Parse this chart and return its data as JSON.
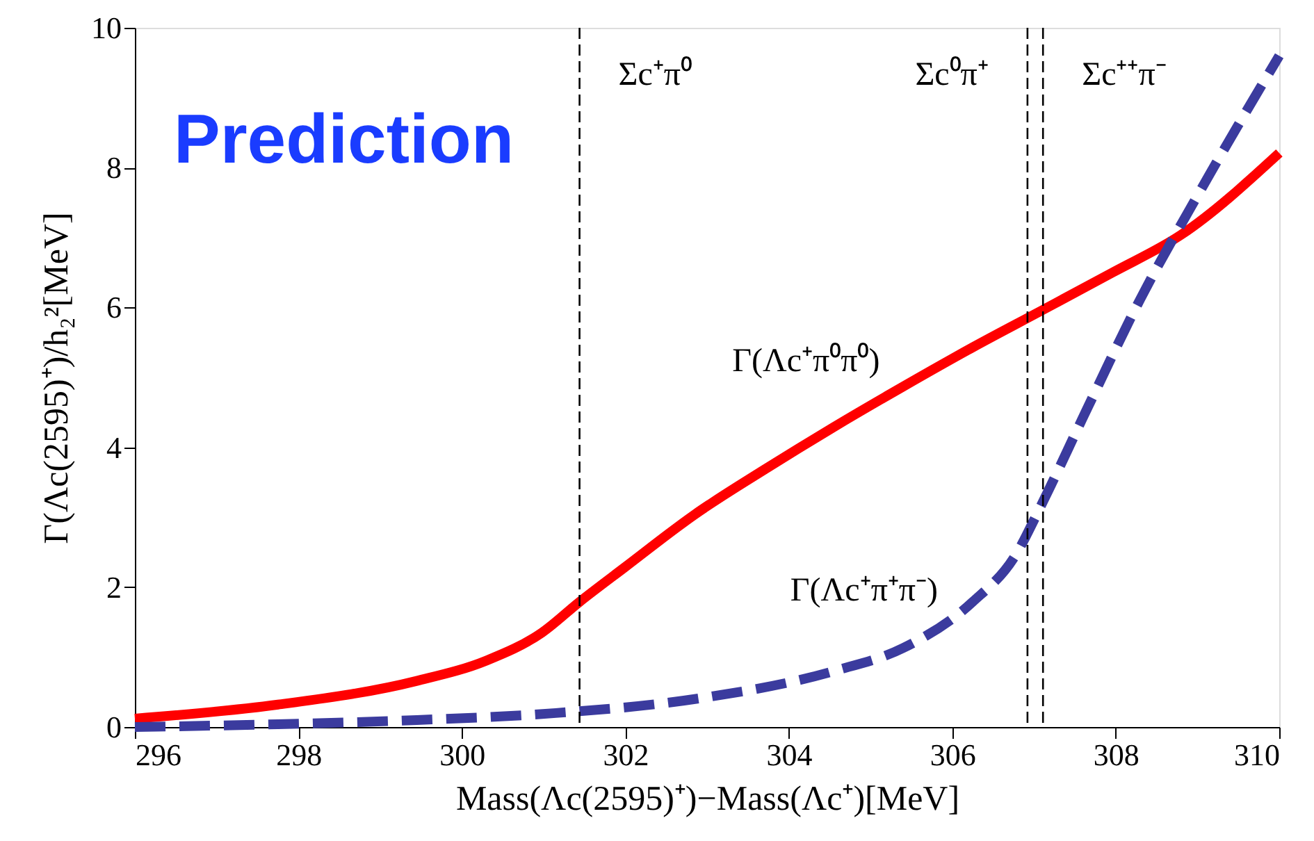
{
  "chart_data": {
    "type": "line",
    "xlabel": "Mass(Λc(2595)⁺)−Mass(Λc⁺)[MeV]",
    "ylabel": "Γ(Λc(2595)⁺)/h₂²[MeV]",
    "xlim": [
      296,
      310
    ],
    "xticks": [
      296,
      298,
      300,
      302,
      304,
      306,
      308,
      310
    ],
    "ylim": [
      0,
      10
    ],
    "yticks": [
      0,
      2,
      4,
      6,
      8,
      10
    ],
    "grid": false,
    "legend": false,
    "marker": "none",
    "x": [
      296,
      297.75,
      299.45,
      300.3,
      300.98,
      301.44,
      302.0,
      302.85,
      303.7,
      304.55,
      305.4,
      306.25,
      307.1,
      307.96,
      308.8,
      310
    ],
    "series": [
      {
        "name": "Γ(Λc⁺π⁰π⁰)",
        "color": "#ff0000",
        "line_style": "solid",
        "values": [
          0.12,
          0.32,
          0.66,
          0.95,
          1.35,
          1.79,
          2.29,
          3.04,
          3.68,
          4.29,
          4.87,
          5.43,
          5.96,
          6.5,
          7.04,
          8.21
        ]
      },
      {
        "name": "Γ(Λc⁺π⁺π⁻)",
        "color": "#3b3b9e",
        "line_style": "dashed",
        "x": [
          296,
          297.75,
          299.45,
          301.15,
          302.85,
          304.55,
          305.4,
          306.25,
          306.77,
          307.1,
          307.6,
          308.3,
          309.0,
          310
        ],
        "values": [
          0.0,
          0.04,
          0.1,
          0.2,
          0.4,
          0.8,
          1.13,
          1.79,
          2.45,
          3.2,
          4.43,
          6.12,
          7.6,
          9.6
        ]
      }
    ],
    "ref_lines": [
      {
        "axis": "x",
        "value": 301.44,
        "label": "Σc⁺π⁰",
        "color": "#000000",
        "line_style": "dashed"
      },
      {
        "axis": "x",
        "value": 306.92,
        "label": "Σc⁰π⁺",
        "color": "#000000",
        "line_style": "dashed"
      },
      {
        "axis": "x",
        "value": 307.11,
        "label": "Σc⁺⁺π⁻",
        "color": "#000000",
        "line_style": "dashed"
      }
    ],
    "annotations": [
      "Prediction"
    ]
  }
}
